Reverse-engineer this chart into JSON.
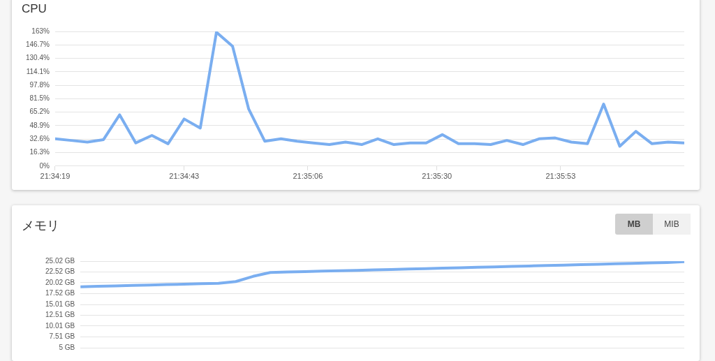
{
  "chart_data": [
    {
      "type": "line",
      "title": "CPU",
      "x": [
        21.571944,
        21.572778,
        21.573611,
        21.574444,
        21.575278,
        21.576111,
        21.576944,
        21.577778,
        21.578611,
        21.579444,
        21.580278,
        21.581111,
        21.581944,
        21.582778,
        21.583611,
        21.584444,
        21.585278,
        21.586111,
        21.586944,
        21.587778,
        21.588611,
        21.589444,
        21.590278,
        21.591111,
        21.591944,
        21.592778,
        21.593611,
        21.594444,
        21.595278,
        21.596111,
        21.596944,
        21.597778,
        21.598611,
        21.599444,
        21.600278,
        21.601111,
        21.601944,
        21.602778,
        21.603611,
        21.604444
      ],
      "series": [
        {
          "color": "#7aaef0",
          "values": [
            33,
            31,
            29,
            32,
            62,
            28,
            37,
            27,
            57,
            46,
            162,
            145,
            69,
            30,
            33,
            30,
            28,
            26,
            29,
            26,
            33,
            26,
            28,
            28,
            38,
            27,
            27,
            26,
            31,
            26,
            33,
            34,
            29,
            27,
            75,
            24,
            42,
            27,
            29,
            28
          ]
        }
      ],
      "xlim": [
        21.571944,
        21.604444
      ],
      "xticks": [
        {
          "value": 21.571944,
          "label": "21:34:19"
        },
        {
          "value": 21.578611,
          "label": "21:34:43"
        },
        {
          "value": 21.585,
          "label": "21:35:06"
        },
        {
          "value": 21.591667,
          "label": "21:35:30"
        },
        {
          "value": 21.598056,
          "label": "21:35:53"
        }
      ],
      "ylim": [
        0,
        163
      ],
      "yticks": [
        {
          "value": 0,
          "label": "0%"
        },
        {
          "value": 16.3,
          "label": "16.3%"
        },
        {
          "value": 32.6,
          "label": "32.6%"
        },
        {
          "value": 48.9,
          "label": "48.9%"
        },
        {
          "value": 65.2,
          "label": "65.2%"
        },
        {
          "value": 81.5,
          "label": "81.5%"
        },
        {
          "value": 97.8,
          "label": "97.8%"
        },
        {
          "value": 114.1,
          "label": "114.1%"
        },
        {
          "value": 130.4,
          "label": "130.4%"
        },
        {
          "value": 146.7,
          "label": "146.7%"
        },
        {
          "value": 163,
          "label": "163%"
        }
      ],
      "grid": "y",
      "legend": false,
      "marker": "none",
      "line_style": "solid"
    },
    {
      "type": "line",
      "title": "メモリ",
      "annotations": [
        "MB",
        "MIB"
      ],
      "categories": [
        null,
        null,
        null,
        null,
        null,
        null,
        null,
        null,
        null,
        null,
        null,
        null,
        null,
        null,
        null,
        null,
        null,
        null,
        null,
        null,
        null,
        null,
        null,
        null,
        null,
        null,
        null,
        null,
        null,
        null,
        null,
        null,
        null,
        null,
        null,
        null
      ],
      "series": [
        {
          "color": "#7aaef0",
          "values": [
            19.1,
            19.2,
            19.3,
            19.4,
            19.5,
            19.6,
            19.7,
            19.8,
            19.9,
            20.3,
            21.5,
            22.4,
            22.5,
            22.6,
            22.7,
            22.8,
            22.9,
            23,
            23.1,
            23.2,
            23.3,
            23.4,
            23.5,
            23.6,
            23.7,
            23.8,
            23.9,
            24,
            24.1,
            24.2,
            24.3,
            24.4,
            24.5,
            24.6,
            24.7,
            24.9
          ]
        }
      ],
      "ylim": [
        5,
        25.02
      ],
      "yticks": [
        {
          "value": 5,
          "label": "5 GB"
        },
        {
          "value": 7.51,
          "label": "7.51 GB"
        },
        {
          "value": 10.01,
          "label": "10.01 GB"
        },
        {
          "value": 12.51,
          "label": "12.51 GB"
        },
        {
          "value": 15.01,
          "label": "15.01 GB"
        },
        {
          "value": 17.52,
          "label": "17.52 GB"
        },
        {
          "value": 20.02,
          "label": "20.02 GB"
        },
        {
          "value": 22.52,
          "label": "22.52 GB"
        },
        {
          "value": 25.02,
          "label": "25.02 GB"
        }
      ],
      "grid": "y",
      "legend": false,
      "marker": "none",
      "line_style": "solid",
      "tick_labels": "y"
    }
  ]
}
